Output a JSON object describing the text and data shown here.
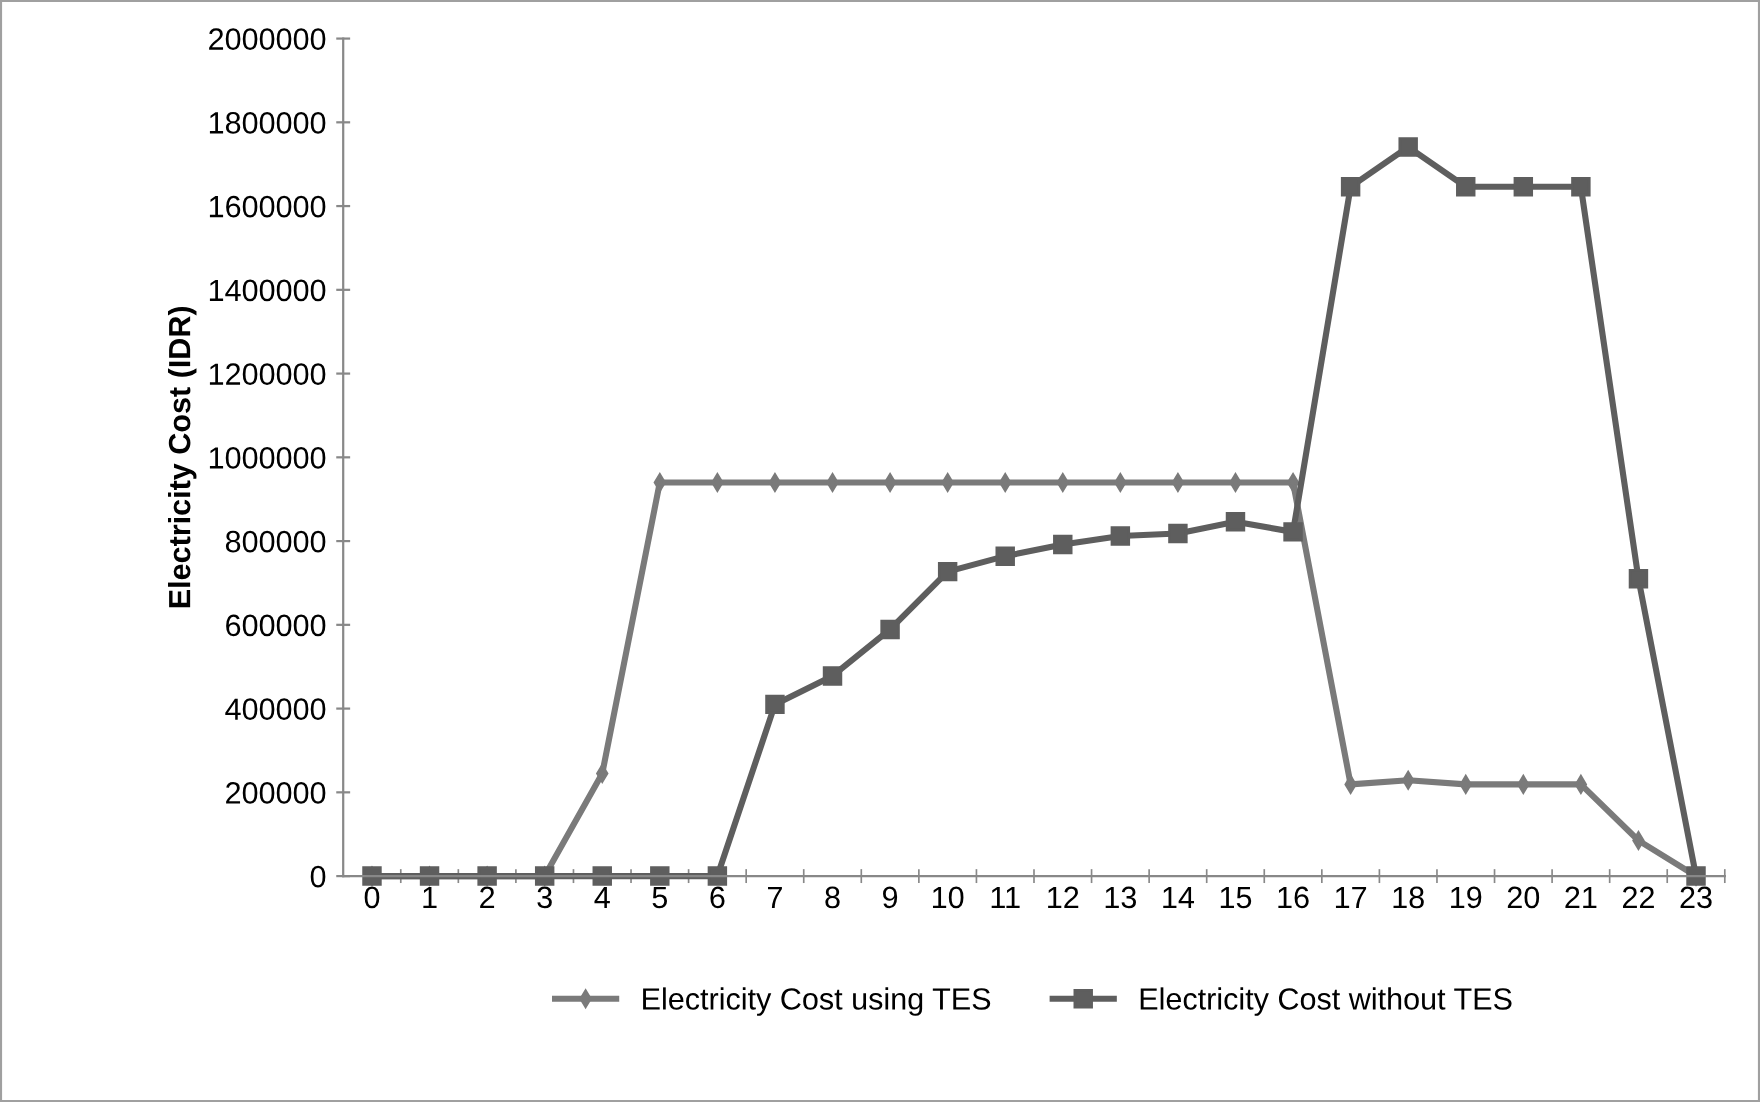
{
  "chart_data": {
    "type": "line",
    "ylabel": "Electricity Cost (IDR)",
    "categories": [
      "0",
      "1",
      "2",
      "3",
      "4",
      "5",
      "6",
      "7",
      "8",
      "9",
      "10",
      "11",
      "12",
      "13",
      "14",
      "15",
      "16",
      "17",
      "18",
      "19",
      "20",
      "21",
      "22",
      "23"
    ],
    "series": [
      {
        "name": "Electricity Cost using TES",
        "color": "#7a7a7a",
        "marker": "diamond",
        "values": [
          0,
          0,
          0,
          0,
          245000,
          940000,
          940000,
          940000,
          940000,
          940000,
          940000,
          940000,
          940000,
          940000,
          940000,
          940000,
          940000,
          219000,
          229000,
          219000,
          219000,
          219000,
          85000,
          0
        ]
      },
      {
        "name": "Electricity Cost without TES",
        "color": "#5e5e5e",
        "marker": "square",
        "values": [
          0,
          0,
          0,
          0,
          0,
          0,
          0,
          410000,
          478000,
          589000,
          727000,
          764000,
          792000,
          812000,
          818000,
          846000,
          822000,
          1646000,
          1741000,
          1646000,
          1646000,
          1646000,
          710000,
          0
        ]
      }
    ],
    "ylim": [
      0,
      2000000
    ],
    "yticks": [
      0,
      200000,
      400000,
      600000,
      800000,
      1000000,
      1200000,
      1400000,
      1600000,
      1800000,
      2000000
    ],
    "grid": false,
    "legend": "bottom",
    "line_style": "solid"
  }
}
